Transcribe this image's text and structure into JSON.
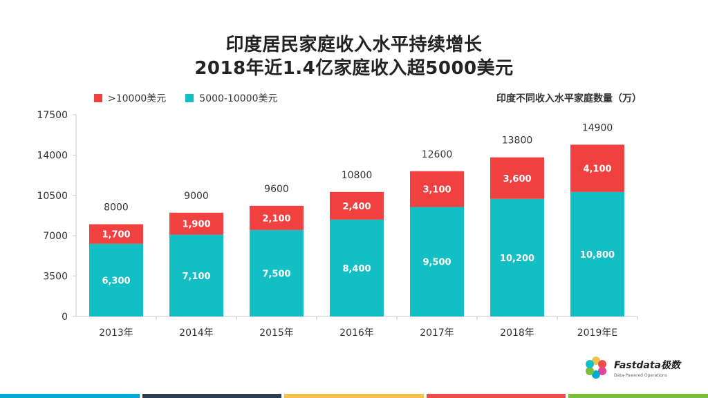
{
  "title_line1": "印度居民家庭收入水平持续增长",
  "title_line2": "2018年近1.4亿家庭收入超5000美元",
  "unit_note": "印度不同收入水平家庭数量（万）",
  "colors": {
    "high": "#f04040",
    "mid": "#12bfc4",
    "axis": "#c8c8c8",
    "text": "#333333"
  },
  "logo": {
    "name": "Fastdata极数",
    "tagline": "Data-Powered Operations"
  },
  "bottom_bar_colors": [
    "#00a9d6",
    "#2d3e50",
    "#f2c14e",
    "#ef4b4b",
    "#7bbf3a"
  ],
  "chart_data": {
    "type": "bar",
    "stacked": true,
    "categories": [
      "2013年",
      "2014年",
      "2015年",
      "2016年",
      "2017年",
      "2018年",
      "2019年E"
    ],
    "series": [
      {
        "name": "5000-10000美元",
        "color": "#12bfc4",
        "values": [
          6300,
          7100,
          7500,
          8400,
          9500,
          10200,
          10800
        ],
        "labels": [
          "6,300",
          "7,100",
          "7,500",
          "8,400",
          "9,500",
          "10,200",
          "10,800"
        ]
      },
      {
        "name": ">10000美元",
        "color": "#f04040",
        "values": [
          1700,
          1900,
          2100,
          2400,
          3100,
          3600,
          4100
        ],
        "labels": [
          "1,700",
          "1,900",
          "2,100",
          "2,400",
          "3,100",
          "3,600",
          "4,100"
        ]
      }
    ],
    "totals": [
      8000,
      9000,
      9600,
      10800,
      12600,
      13800,
      14900
    ],
    "ylim": [
      0,
      17500
    ],
    "yticks": [
      0,
      3500,
      7000,
      10500,
      14000,
      17500
    ],
    "legend": [
      {
        "label": ">10000美元",
        "color": "#f04040"
      },
      {
        "label": "5000-10000美元",
        "color": "#12bfc4"
      }
    ],
    "legend_position": "top-left",
    "grid": false
  }
}
